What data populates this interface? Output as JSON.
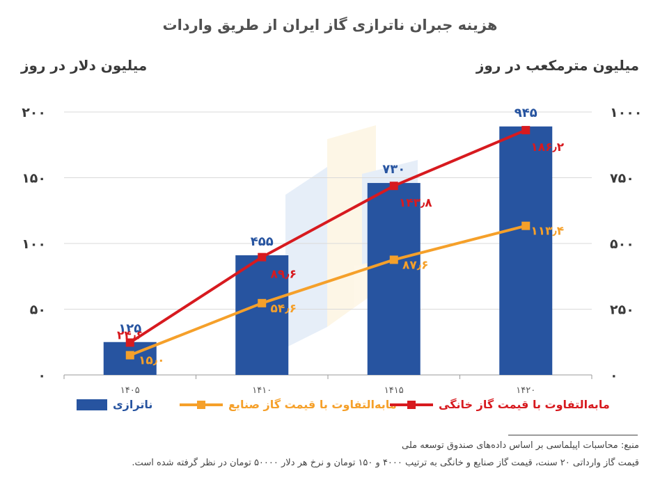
{
  "chart_data": {
    "type": "bar+line",
    "title": "هزینه جبران ناترازی گاز ایران از طریق واردات",
    "y_left_label": "میلیون دلار در روز",
    "y_right_label": "میلیون مترمکعب در روز",
    "categories": [
      "۱۴۰۵",
      "۱۴۱۰",
      "۱۴۱۵",
      "۱۴۲۰"
    ],
    "y_left_ticks": [
      "۰",
      "۵۰",
      "۱۰۰",
      "۱۵۰",
      "۲۰۰"
    ],
    "y_left_range": [
      0,
      200
    ],
    "y_right_ticks": [
      "۰",
      "۲۵۰",
      "۵۰۰",
      "۷۵۰",
      "۱۰۰۰"
    ],
    "y_right_range": [
      0,
      1000
    ],
    "series": [
      {
        "name": "ناترازی",
        "type": "bar",
        "axis": "right",
        "color": "#2754a0",
        "values": [
          125,
          455,
          730,
          945
        ],
        "labels": [
          "۱۲۵",
          "۴۵۵",
          "۷۳۰",
          "۹۴۵"
        ]
      },
      {
        "name": "مابه‌التفاوت با قیمت گاز صنایع",
        "type": "line",
        "axis": "left",
        "color": "#f5a02a",
        "values": [
          15.0,
          54.6,
          87.6,
          113.4
        ],
        "labels": [
          "۱۵٫۰",
          "۵۴٫۶",
          "۸۷٫۶",
          "۱۱۳٫۴"
        ]
      },
      {
        "name": "مابه‌التفاوت با قیمت گاز خانگی",
        "type": "line",
        "axis": "left",
        "color": "#d71a1f",
        "values": [
          24.6,
          89.6,
          143.8,
          186.2
        ],
        "labels": [
          "۲۴٫۶",
          "۸۹٫۶",
          "۱۴۳٫۸",
          "۱۸۶٫۲"
        ]
      }
    ],
    "grid": true
  },
  "notes": {
    "source": "منبع: محاسبات اپیلماسی بر اساس داده‌های صندوق توسعه ملی",
    "assumption": "قیمت گاز وارداتی ۲۰ سنت، قیمت گاز صنایع و خانگی به ترتیب ۴۰۰۰ و ۱۵۰ تومان و نرخ هر دلار ۵۰۰۰۰ تومان در نظر گرفته شده است."
  }
}
